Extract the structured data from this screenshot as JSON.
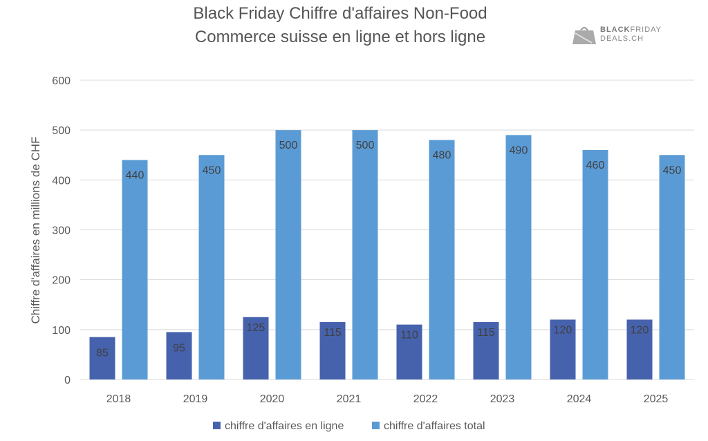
{
  "chart_data": {
    "type": "bar",
    "title": "Black Friday Chiffre d'affaires Non-Food",
    "subtitle": "Commerce suisse en ligne et hors ligne",
    "xlabel": "",
    "ylabel": "Chiffre d'affaires en millions de CHF",
    "ylim": [
      0,
      600
    ],
    "yticks": [
      "0",
      "100",
      "200",
      "300",
      "400",
      "500",
      "600"
    ],
    "grid": true,
    "legend_position": "bottom",
    "categories": [
      "2018",
      "2019",
      "2020",
      "2021",
      "2022",
      "2023",
      "2024",
      "2025"
    ],
    "series": [
      {
        "name": "chiffre d'affaires en ligne",
        "color": "#4662ad",
        "values": [
          85,
          95,
          125,
          115,
          110,
          115,
          120,
          120
        ]
      },
      {
        "name": "chiffre d'affaires total",
        "color": "#5b9bd5",
        "values": [
          440,
          450,
          500,
          500,
          480,
          490,
          460,
          450
        ]
      }
    ]
  },
  "logo": {
    "line1_bold": "BLACK",
    "line1_rest": "FRIDAY",
    "line2": "DEALS.CH"
  }
}
